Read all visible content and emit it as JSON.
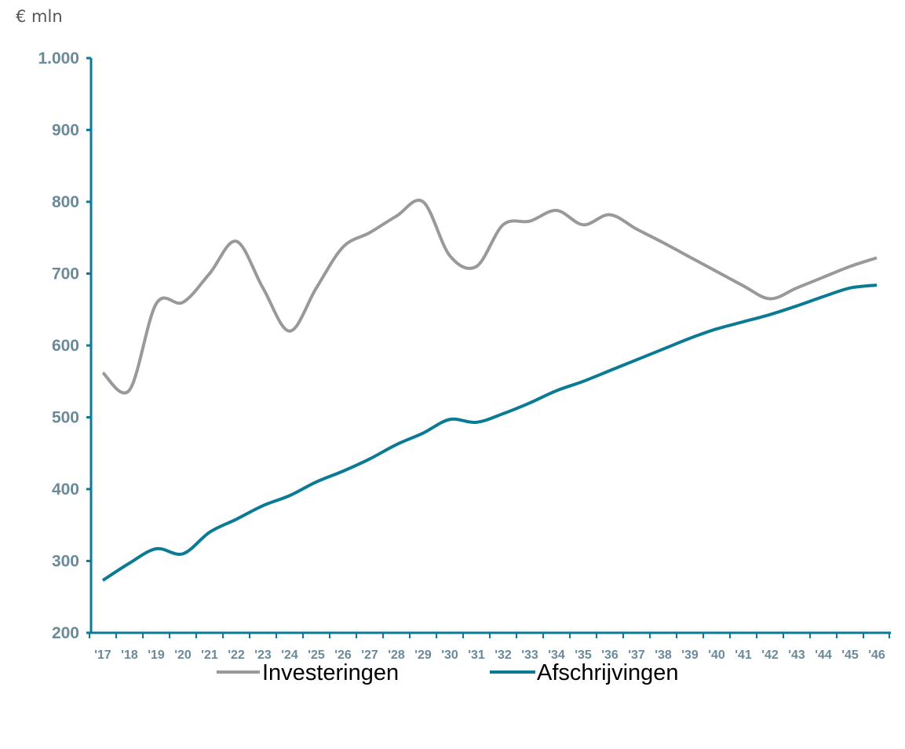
{
  "chart_data": {
    "type": "line",
    "unit_label": "€ mln",
    "ylim": [
      200,
      1000
    ],
    "yticks": [
      200,
      300,
      400,
      500,
      600,
      700,
      800,
      900,
      1000
    ],
    "ytick_labels": [
      "200",
      "300",
      "400",
      "500",
      "600",
      "700",
      "800",
      "900",
      "1.000"
    ],
    "categories": [
      "'17",
      "'18",
      "'19",
      "'20",
      "'21",
      "'22",
      "'23",
      "'24",
      "'25",
      "'26",
      "'27",
      "'28",
      "'29",
      "'30",
      "'31",
      "'32",
      "'33",
      "'34",
      "'35",
      "'36",
      "'37",
      "'38",
      "'39",
      "'40",
      "'41",
      "'42",
      "'43",
      "'44",
      "'45",
      "'46"
    ],
    "series": [
      {
        "name": "Investeringen",
        "color": "#999999",
        "values": [
          562,
          538,
          658,
          660,
          700,
          745,
          680,
          620,
          680,
          737,
          757,
          780,
          800,
          725,
          710,
          768,
          773,
          788,
          768,
          782,
          762,
          743,
          723,
          703,
          683,
          665,
          680,
          695,
          710,
          722
        ]
      },
      {
        "name": "Afschrijvingen",
        "color": "#0b7a94",
        "values": [
          273,
          297,
          317,
          310,
          340,
          358,
          377,
          391,
          410,
          425,
          442,
          462,
          478,
          497,
          493,
          505,
          520,
          537,
          550,
          565,
          580,
          595,
          610,
          623,
          633,
          643,
          655,
          668,
          680,
          684
        ]
      }
    ],
    "legend_position": "bottom",
    "grid": false
  }
}
